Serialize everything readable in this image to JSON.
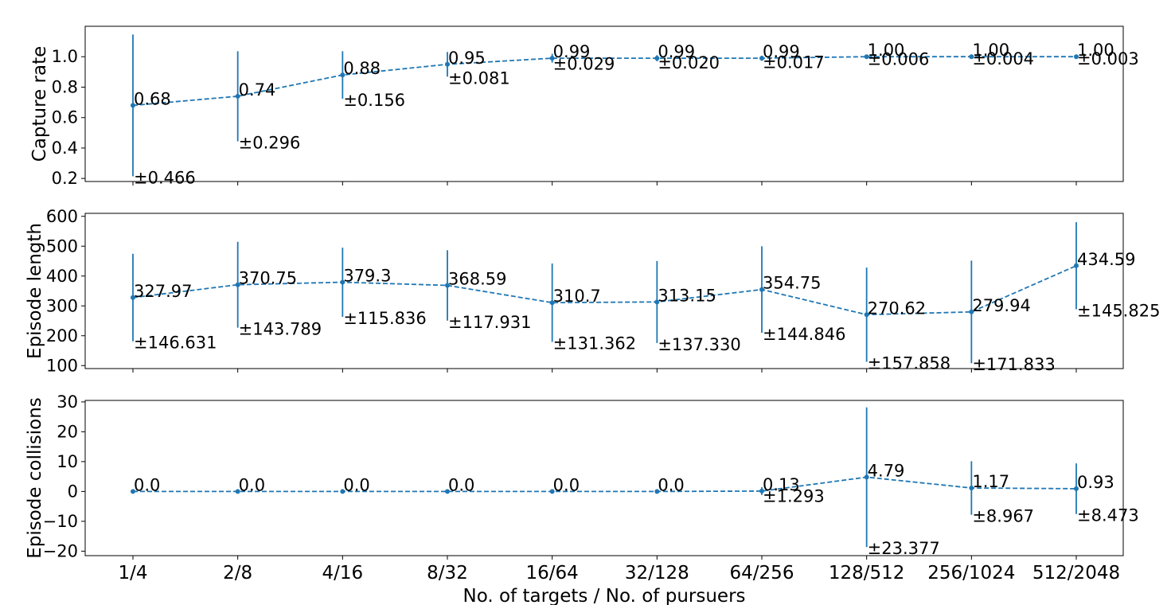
{
  "chart_data": {
    "type": "line",
    "xlabel": "No. of targets / No. of pursuers",
    "categories": [
      "1/4",
      "2/8",
      "4/16",
      "8/32",
      "16/64",
      "32/128",
      "64/256",
      "128/512",
      "256/1024",
      "512/2048"
    ],
    "style": {
      "color": "#1f77b4",
      "line": "dashed",
      "marker": "circle",
      "error_bars": true,
      "grid": false
    },
    "panels": [
      {
        "ylabel": "Capture rate",
        "ylim": [
          0.18,
          1.2
        ],
        "yticks": [
          0.2,
          0.4,
          0.6,
          0.8,
          1.0
        ],
        "ytick_labels": [
          "0.2",
          "0.4",
          "0.6",
          "0.8",
          "1.0"
        ],
        "values": [
          0.68,
          0.74,
          0.88,
          0.95,
          0.99,
          0.99,
          0.99,
          1.0,
          1.0,
          1.0
        ],
        "errors": [
          0.466,
          0.296,
          0.156,
          0.081,
          0.029,
          0.02,
          0.017,
          0.006,
          0.004,
          0.003
        ],
        "value_labels": [
          "0.68",
          "0.74",
          "0.88",
          "0.95",
          "0.99",
          "0.99",
          "0.99",
          "1.00",
          "1.00",
          "1.00"
        ],
        "error_labels": [
          "±0.466",
          "±0.296",
          "±0.156",
          "±0.081",
          "±0.029",
          "±0.020",
          "±0.017",
          "±0.006",
          "±0.004",
          "±0.003"
        ]
      },
      {
        "ylabel": "Episode length",
        "ylim": [
          90,
          610
        ],
        "yticks": [
          100,
          200,
          300,
          400,
          500,
          600
        ],
        "ytick_labels": [
          "100",
          "200",
          "300",
          "400",
          "500",
          "600"
        ],
        "values": [
          327.97,
          370.75,
          379.3,
          368.59,
          310.7,
          313.15,
          354.75,
          270.62,
          279.94,
          434.59
        ],
        "errors": [
          146.631,
          143.789,
          115.836,
          117.931,
          131.362,
          137.33,
          144.846,
          157.858,
          171.833,
          145.825
        ],
        "value_labels": [
          "327.97",
          "370.75",
          "379.3",
          "368.59",
          "310.7",
          "313.15",
          "354.75",
          "270.62",
          "279.94",
          "434.59"
        ],
        "error_labels": [
          "±146.631",
          "±143.789",
          "±115.836",
          "±117.931",
          "±131.362",
          "±137.330",
          "±144.846",
          "±157.858",
          "±171.833",
          "±145.825"
        ]
      },
      {
        "ylabel": "Episode collisions",
        "ylim": [
          -21.5,
          30.5
        ],
        "yticks": [
          -20,
          -10,
          0,
          10,
          20,
          30
        ],
        "ytick_labels": [
          "−20",
          "−10",
          "0",
          "10",
          "20",
          "30"
        ],
        "values": [
          0.0,
          0.0,
          0.0,
          0.0,
          0.0,
          0.0,
          0.13,
          4.79,
          1.17,
          0.93
        ],
        "errors": [
          0,
          0,
          0,
          0,
          0,
          0,
          1.293,
          23.377,
          8.967,
          8.473
        ],
        "value_labels": [
          "0.0",
          "0.0",
          "0.0",
          "0.0",
          "0.0",
          "0.0",
          "0.13",
          "4.79",
          "1.17",
          "0.93"
        ],
        "error_labels": [
          "",
          "",
          "",
          "",
          "",
          "",
          "±1.293",
          "±23.377",
          "±8.967",
          "±8.473"
        ]
      }
    ]
  }
}
